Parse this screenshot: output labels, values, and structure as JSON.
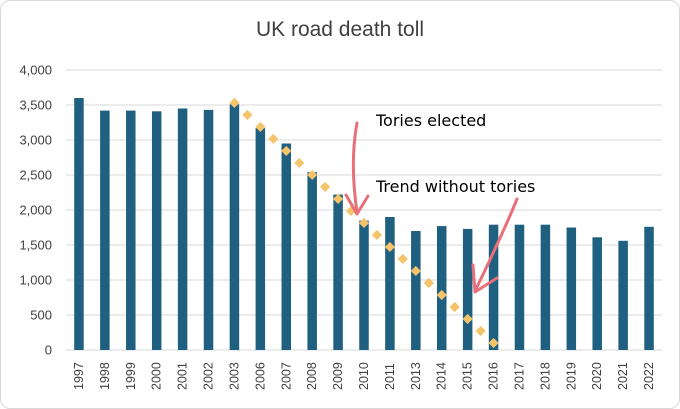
{
  "chart_data": {
    "type": "bar",
    "title": "UK road death toll",
    "categories": [
      "1997",
      "1998",
      "1999",
      "2000",
      "2001",
      "2002",
      "2003",
      "2006",
      "2007",
      "2008",
      "2009",
      "2010",
      "2011",
      "2013",
      "2014",
      "2015",
      "2016",
      "2017",
      "2018",
      "2019",
      "2020",
      "2021",
      "2022"
    ],
    "values": [
      3600,
      3420,
      3420,
      3410,
      3450,
      3430,
      3510,
      3170,
      2950,
      2540,
      2220,
      1850,
      1900,
      1700,
      1770,
      1730,
      1790,
      1790,
      1790,
      1750,
      1610,
      1560,
      1760
    ],
    "ylim": [
      0,
      4000
    ],
    "yticks": [
      "0",
      "500",
      "1,000",
      "1,500",
      "2,000",
      "2,500",
      "3,000",
      "3,500",
      "4,000"
    ],
    "ytick_values": [
      0,
      500,
      1000,
      1500,
      2000,
      2500,
      3000,
      3500,
      4000
    ],
    "grid": true,
    "bar_color": "#1f5f7f",
    "trend": {
      "style": "dotted",
      "color": "#f5c36a",
      "points": [
        {
          "x": "2003",
          "y": 3530
        },
        {
          "x": "2016",
          "y": 100
        }
      ]
    },
    "annotations": [
      {
        "text": "Tories elected",
        "arrow_color": "#e8707a"
      },
      {
        "text": "Trend without tories",
        "arrow_color": "#e8707a"
      }
    ]
  }
}
